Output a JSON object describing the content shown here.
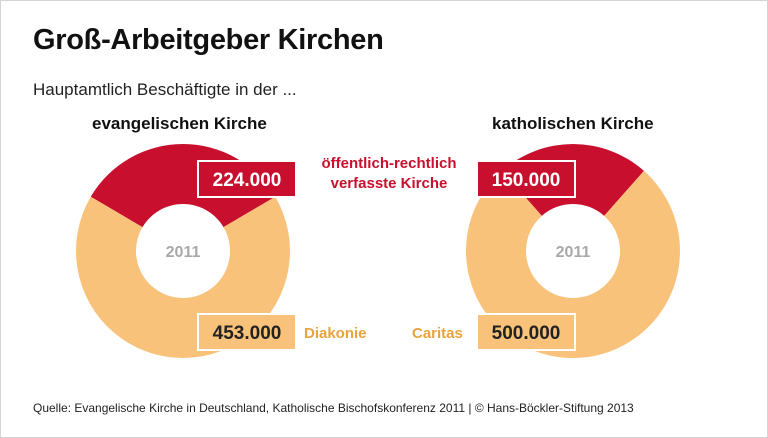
{
  "title": "Groß-Arbeitgeber Kirchen",
  "subtitle": "Hauptamtlich Beschäftigte in der ...",
  "chart_data": [
    {
      "type": "pie",
      "title": "evangelischen Kirche",
      "center_label": "2011",
      "categories": [
        "öffentlich-rechtlich verfasste Kirche",
        "Diakonie"
      ],
      "values": [
        224000,
        453000
      ],
      "value_labels": [
        "224.000",
        "453.000"
      ]
    },
    {
      "type": "pie",
      "title": "katholischen Kirche",
      "center_label": "2011",
      "categories": [
        "öffentlich-rechtlich verfasste Kirche",
        "Caritas"
      ],
      "values": [
        150000,
        500000
      ],
      "value_labels": [
        "150.000",
        "500.000"
      ]
    }
  ],
  "legend": {
    "red_line1": "öffentlich-rechtlich",
    "red_line2": "verfasste Kirche",
    "diakonie": "Diakonie",
    "caritas": "Caritas"
  },
  "colors": {
    "red": "#c8102e",
    "orange": "#f9c27a",
    "center_text": "#a8a8a8"
  },
  "source": "Quelle: Evangelische Kirche in Deutschland, Katholische Bischofskonferenz 2011 | © Hans-Böckler-Stiftung 2013"
}
